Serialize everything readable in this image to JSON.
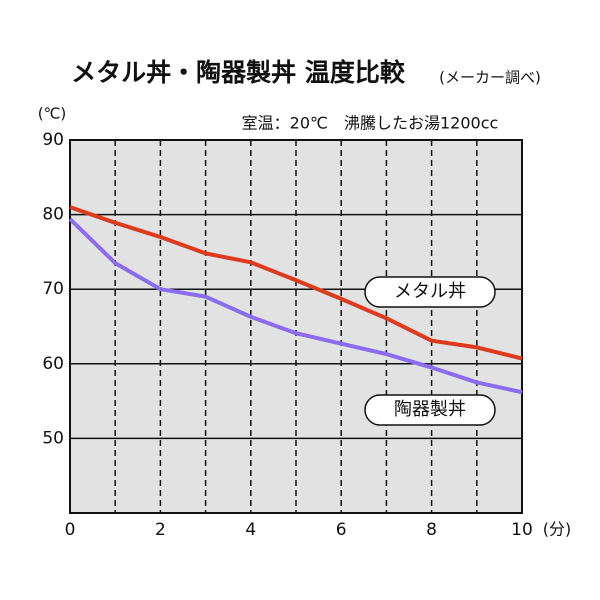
{
  "chart_data": {
    "type": "line",
    "title": "メタル丼・陶器製丼 温度比較",
    "subtitle": "(メーカー調べ)",
    "annotation": "室温：20℃　沸騰したお湯1200cc",
    "y_label": "(℃)",
    "x_label": "(分)",
    "x": [
      0,
      1,
      2,
      3,
      4,
      5,
      6,
      7,
      8,
      9,
      10
    ],
    "series": [
      {
        "name": "メタル丼",
        "color": "#e03a1e",
        "values": [
          81.0,
          78.9,
          77.0,
          74.8,
          73.6,
          71.2,
          68.7,
          66.1,
          63.1,
          62.2,
          60.7
        ]
      },
      {
        "name": "陶器製丼",
        "color": "#8a6cf0",
        "values": [
          79.4,
          73.5,
          70.0,
          69.0,
          66.3,
          64.1,
          62.7,
          61.3,
          59.5,
          57.5,
          56.2
        ]
      }
    ],
    "xlim": [
      0,
      10
    ],
    "xticks": [
      0,
      2,
      4,
      6,
      8,
      10
    ],
    "ylim": [
      40,
      90
    ],
    "yticks": [
      50,
      60,
      70,
      80,
      90
    ],
    "grid": true,
    "background": "#e2e2e2"
  }
}
